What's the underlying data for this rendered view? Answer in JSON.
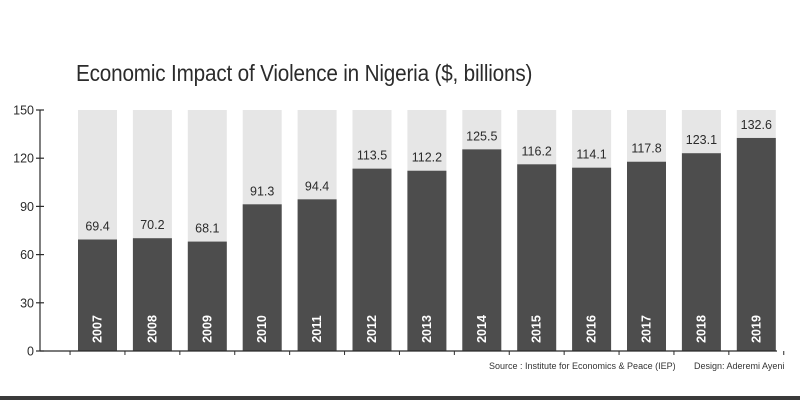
{
  "chart_data": {
    "type": "bar",
    "title": "Economic Impact of Violence in Nigeria ($, billions)",
    "xlabel": "",
    "ylabel": "",
    "categories": [
      "2007",
      "2008",
      "2009",
      "2010",
      "2011",
      "2012",
      "2013",
      "2014",
      "2015",
      "2016",
      "2017",
      "2018",
      "2019"
    ],
    "values": [
      69.4,
      70.2,
      68.1,
      91.3,
      94.4,
      113.5,
      112.2,
      125.5,
      116.2,
      114.1,
      117.8,
      123.1,
      132.6
    ],
    "value_labels": [
      "69.4",
      "70.2",
      "68.1",
      "91.3",
      "94.4",
      "113.5",
      "112.2",
      "125.5",
      "116.2",
      "114.1",
      "117.8",
      "123.1",
      "132.6"
    ],
    "ylim": [
      0,
      150
    ],
    "yticks": [
      0,
      30,
      60,
      90,
      120,
      150
    ],
    "ytick_labels": [
      "0",
      "30",
      "60",
      "90",
      "120",
      "150"
    ],
    "colors": {
      "bar": "#4d4d4d",
      "background_bar": "#e6e6e6",
      "axis": "#2b2b2b"
    }
  },
  "footer": {
    "source": "Source : Institute for Economics & Peace (IEP)",
    "credit": "Design: Aderemi Ayeni"
  }
}
